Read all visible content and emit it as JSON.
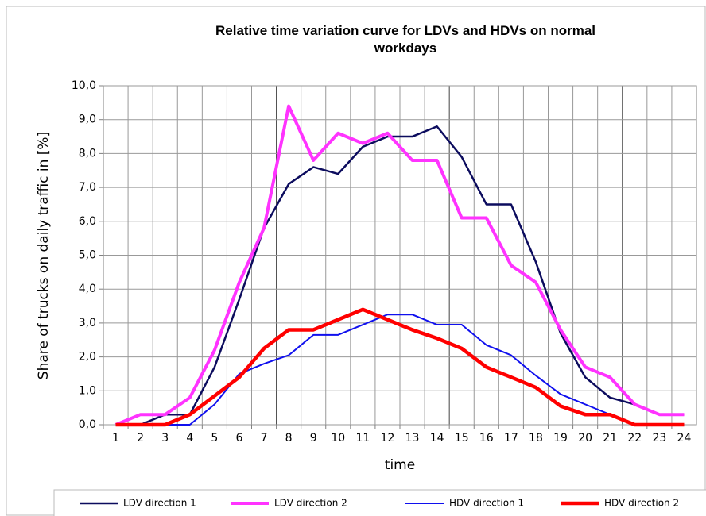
{
  "chart_data": {
    "type": "line",
    "title": "Relative time variation curve for LDVs and HDVs on normal workdays",
    "x_label": "time",
    "y_label": "Share of trucks on daily traffic in [%]",
    "categories": [
      "1",
      "2",
      "3",
      "4",
      "5",
      "6",
      "7",
      "8",
      "9",
      "10",
      "11",
      "12",
      "13",
      "14",
      "15",
      "16",
      "17",
      "18",
      "19",
      "20",
      "21",
      "22",
      "23",
      "24"
    ],
    "series": [
      {
        "name": "LDV direction 1",
        "color": "#0c0c5e",
        "values": [
          0,
          0,
          0.3,
          0.3,
          1.7,
          3.7,
          5.8,
          7.1,
          7.6,
          7.4,
          8.2,
          8.5,
          8.5,
          8.8,
          7.9,
          6.5,
          6.5,
          4.8,
          2.7,
          1.4,
          0.8,
          0.6,
          0.3,
          0.3
        ]
      },
      {
        "name": "LDV direction 2",
        "color": "#ff33ff",
        "values": [
          0,
          0.3,
          0.3,
          0.8,
          2.2,
          4.2,
          5.8,
          9.4,
          7.8,
          8.6,
          8.3,
          8.6,
          7.8,
          7.8,
          6.1,
          6.1,
          4.7,
          4.2,
          2.8,
          1.7,
          1.4,
          0.6,
          0.3,
          0.3
        ]
      },
      {
        "name": "HDV direction 1",
        "color": "#1010ee",
        "values": [
          0,
          0,
          0,
          0,
          0.6,
          1.5,
          1.8,
          2.05,
          2.65,
          2.65,
          2.95,
          3.25,
          3.25,
          2.95,
          2.95,
          2.35,
          2.05,
          1.45,
          0.9,
          0.6,
          0.3,
          0,
          0,
          0
        ]
      },
      {
        "name": "HDV direction 2",
        "color": "#ff0000",
        "values": [
          0,
          0,
          0,
          0.3,
          0.85,
          1.4,
          2.25,
          2.8,
          2.8,
          3.1,
          3.4,
          3.1,
          2.8,
          2.55,
          2.25,
          1.7,
          1.4,
          1.1,
          0.55,
          0.3,
          0.3,
          0,
          0,
          0
        ]
      }
    ],
    "ylim": [
      0,
      10
    ],
    "yticks": [
      {
        "value": 0,
        "label": "0,0"
      },
      {
        "value": 1,
        "label": "1,0"
      },
      {
        "value": 2,
        "label": "2,0"
      },
      {
        "value": 3,
        "label": "3,0"
      },
      {
        "value": 4,
        "label": "4,0"
      },
      {
        "value": 5,
        "label": "5,0"
      },
      {
        "value": 6,
        "label": "6,0"
      },
      {
        "value": 7,
        "label": "7,0"
      },
      {
        "value": 8,
        "label": "8,0"
      },
      {
        "value": 9,
        "label": "9,0"
      },
      {
        "value": 10,
        "label": "10,0"
      }
    ],
    "grid": true,
    "legend": "bottom"
  }
}
